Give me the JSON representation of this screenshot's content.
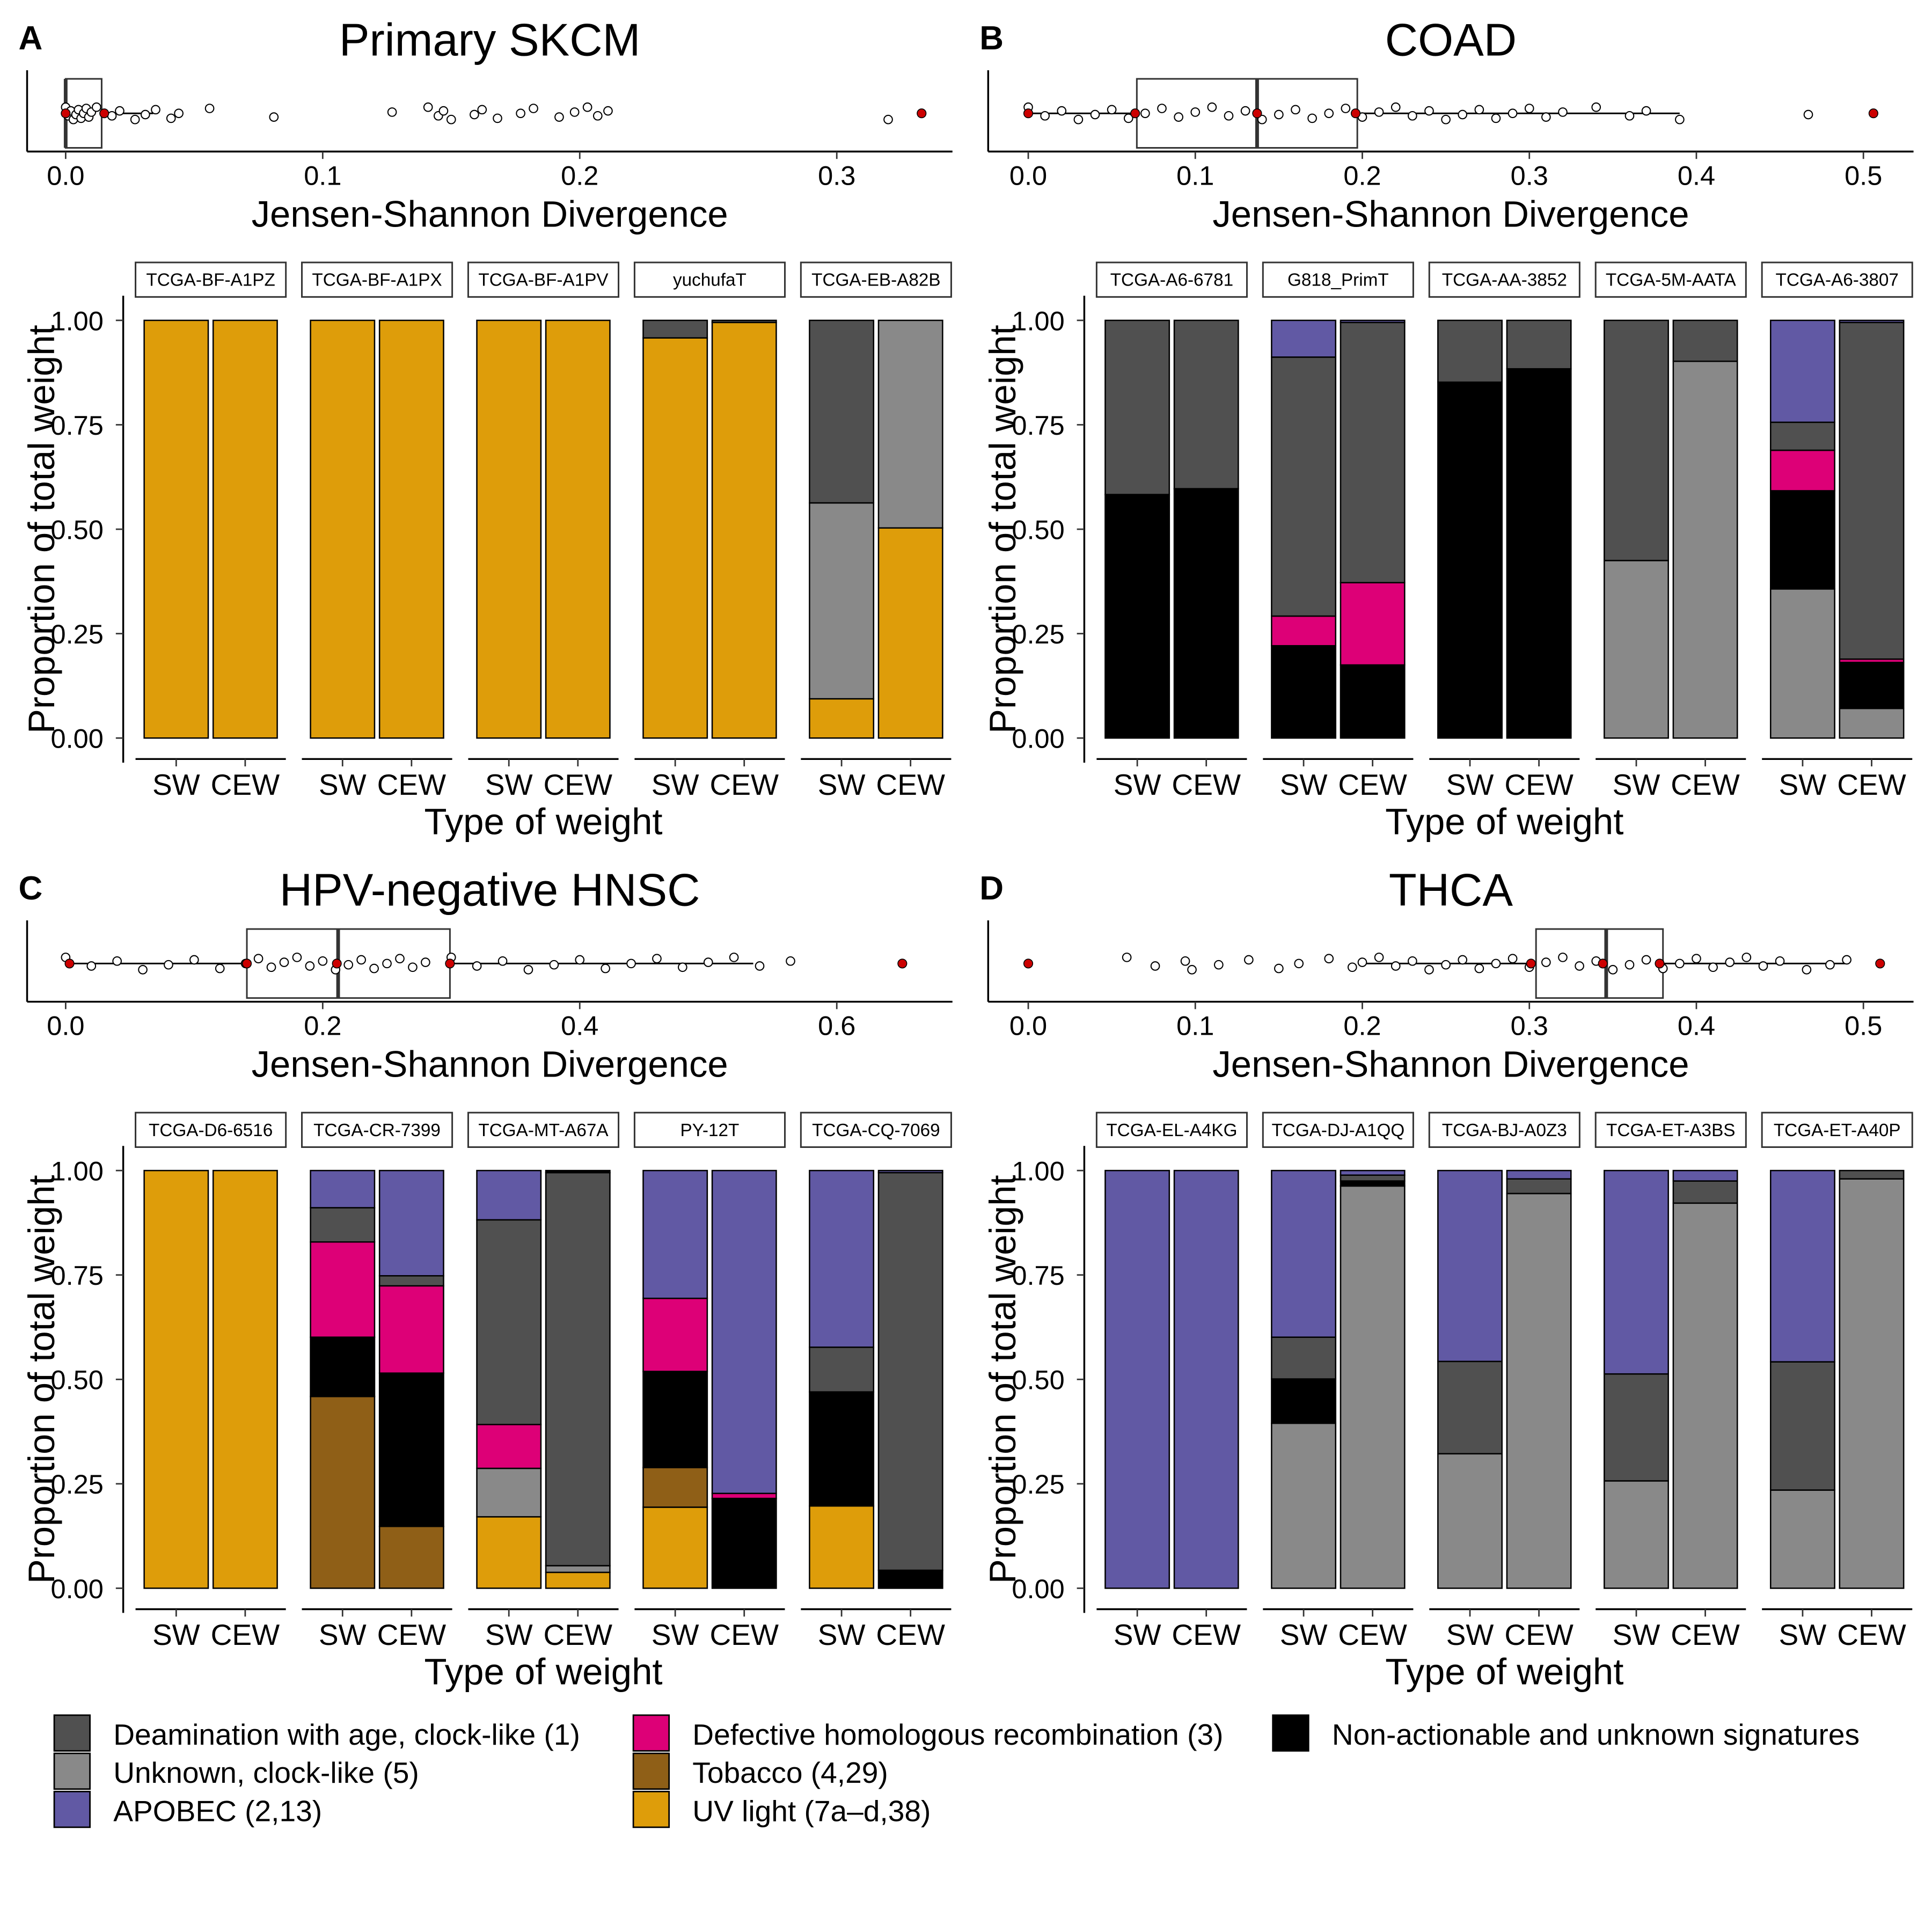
{
  "chart_data": [
    {
      "type": "bar",
      "panel_letter": "A",
      "title": "Primary SKCM",
      "strip": {
        "type": "boxplot",
        "xlabel": "Jensen-Shannon Divergence",
        "xlim": [
          -0.015,
          0.345
        ],
        "ticks": [
          0,
          0.1,
          0.2,
          0.3
        ],
        "tick_labels": [
          "0.0",
          "0.1",
          "0.2",
          "0.3"
        ],
        "box": {
          "q1": 0.0,
          "median": 0.0,
          "q3": 0.014,
          "whisker_low": 0.0,
          "whisker_high": 0.034
        },
        "points": [
          0.0,
          0.001,
          0.002,
          0.003,
          0.004,
          0.005,
          0.006,
          0.007,
          0.008,
          0.009,
          0.01,
          0.012,
          0.018,
          0.021,
          0.027,
          0.031,
          0.035,
          0.041,
          0.044,
          0.056,
          0.081,
          0.127,
          0.141,
          0.145,
          0.147,
          0.15,
          0.159,
          0.162,
          0.168,
          0.177,
          0.182,
          0.192,
          0.198,
          0.203,
          0.207,
          0.211,
          0.32
        ],
        "highlighted": [
          0.0,
          0.015,
          0.333
        ]
      },
      "ylabel": "Proportion of total weight",
      "xlabel": "Type of weight",
      "ylim": [
        0,
        1
      ],
      "y_ticks": [
        "0.00",
        "0.25",
        "0.50",
        "0.75",
        "1.00"
      ],
      "categories": [
        "SW",
        "CEW"
      ],
      "samples": [
        {
          "name": "TCGA-BF-A1PZ",
          "SW": [
            [
              "uv",
              1.0
            ]
          ],
          "CEW": [
            [
              "uv",
              1.0
            ]
          ]
        },
        {
          "name": "TCGA-BF-A1PX",
          "SW": [
            [
              "uv",
              1.0
            ]
          ],
          "CEW": [
            [
              "uv",
              1.0
            ]
          ]
        },
        {
          "name": "TCGA-BF-A1PV",
          "SW": [
            [
              "uv",
              1.0
            ]
          ],
          "CEW": [
            [
              "uv",
              1.0
            ]
          ]
        },
        {
          "name": "yuchufaT",
          "SW": [
            [
              "uv",
              0.958
            ],
            [
              "deam",
              0.042
            ]
          ],
          "CEW": [
            [
              "uv",
              0.995
            ],
            [
              "deam",
              0.005
            ]
          ]
        },
        {
          "name": "TCGA-EB-A82B",
          "SW": [
            [
              "uv",
              0.094
            ],
            [
              "unk5",
              0.469
            ],
            [
              "deam",
              0.437
            ]
          ],
          "CEW": [
            [
              "uv",
              0.503
            ],
            [
              "unk5",
              0.497
            ]
          ]
        }
      ]
    },
    {
      "type": "bar",
      "panel_letter": "B",
      "title": "COAD",
      "strip": {
        "type": "boxplot",
        "xlabel": "Jensen-Shannon Divergence",
        "xlim": [
          -0.024,
          0.53
        ],
        "ticks": [
          0,
          0.1,
          0.2,
          0.3,
          0.4,
          0.5
        ],
        "tick_labels": [
          "0.0",
          "0.1",
          "0.2",
          "0.3",
          "0.4",
          "0.5"
        ],
        "box": {
          "q1": 0.065,
          "median": 0.137,
          "q3": 0.197,
          "whisker_low": 0.0,
          "whisker_high": 0.39
        },
        "points": [
          0.0,
          0.01,
          0.02,
          0.03,
          0.04,
          0.05,
          0.06,
          0.07,
          0.08,
          0.09,
          0.1,
          0.11,
          0.12,
          0.13,
          0.14,
          0.15,
          0.16,
          0.17,
          0.18,
          0.19,
          0.2,
          0.21,
          0.22,
          0.23,
          0.24,
          0.25,
          0.26,
          0.27,
          0.28,
          0.29,
          0.3,
          0.31,
          0.32,
          0.34,
          0.36,
          0.37,
          0.39,
          0.467
        ],
        "highlighted": [
          0.0,
          0.064,
          0.137,
          0.196,
          0.506
        ]
      },
      "ylabel": "Proportion of total weight",
      "xlabel": "Type of weight",
      "ylim": [
        0,
        1
      ],
      "y_ticks": [
        "0.00",
        "0.25",
        "0.50",
        "0.75",
        "1.00"
      ],
      "categories": [
        "SW",
        "CEW"
      ],
      "samples": [
        {
          "name": "TCGA-A6-6781",
          "SW": [
            [
              "nonact",
              0.583
            ],
            [
              "deam",
              0.417
            ]
          ],
          "CEW": [
            [
              "nonact",
              0.597
            ],
            [
              "deam",
              0.403
            ]
          ]
        },
        {
          "name": "G818_PrimT",
          "SW": [
            [
              "nonact",
              0.221
            ],
            [
              "dhr",
              0.071
            ],
            [
              "deam",
              0.62
            ],
            [
              "apobec",
              0.088
            ]
          ],
          "CEW": [
            [
              "nonact",
              0.175
            ],
            [
              "dhr",
              0.197
            ],
            [
              "deam",
              0.623
            ],
            [
              "apobec",
              0.005
            ]
          ]
        },
        {
          "name": "TCGA-AA-3852",
          "SW": [
            [
              "nonact",
              0.852
            ],
            [
              "deam",
              0.148
            ]
          ],
          "CEW": [
            [
              "nonact",
              0.884
            ],
            [
              "deam",
              0.116
            ]
          ]
        },
        {
          "name": "TCGA-5M-AATA",
          "SW": [
            [
              "unk5",
              0.425
            ],
            [
              "deam",
              0.575
            ]
          ],
          "CEW": [
            [
              "unk5",
              0.902
            ],
            [
              "deam",
              0.098
            ]
          ]
        },
        {
          "name": "TCGA-A6-3807",
          "SW": [
            [
              "unk5",
              0.357
            ],
            [
              "nonact",
              0.235
            ],
            [
              "dhr",
              0.097
            ],
            [
              "deam",
              0.067
            ],
            [
              "apobec",
              0.244
            ]
          ],
          "CEW": [
            [
              "unk5",
              0.071
            ],
            [
              "nonact",
              0.11
            ],
            [
              "dhr",
              0.008
            ],
            [
              "deam",
              0.806
            ],
            [
              "apobec",
              0.005
            ]
          ]
        }
      ]
    },
    {
      "type": "bar",
      "panel_letter": "C",
      "title": "HPV-negative HNSC",
      "strip": {
        "type": "boxplot",
        "xlabel": "Jensen-Shannon Divergence",
        "xlim": [
          -0.03,
          0.69
        ],
        "ticks": [
          0,
          0.2,
          0.4,
          0.6
        ],
        "tick_labels": [
          "0.0",
          "0.2",
          "0.4",
          "0.6"
        ],
        "box": {
          "q1": 0.141,
          "median": 0.212,
          "q3": 0.299,
          "whisker_low": 0.0,
          "whisker_high": 0.535
        },
        "points": [
          0.0,
          0.02,
          0.04,
          0.06,
          0.08,
          0.1,
          0.12,
          0.14,
          0.15,
          0.16,
          0.17,
          0.18,
          0.19,
          0.2,
          0.21,
          0.22,
          0.23,
          0.24,
          0.25,
          0.26,
          0.27,
          0.28,
          0.3,
          0.32,
          0.34,
          0.36,
          0.38,
          0.4,
          0.42,
          0.44,
          0.46,
          0.48,
          0.5,
          0.52,
          0.54,
          0.564
        ],
        "highlighted": [
          0.003,
          0.141,
          0.211,
          0.299,
          0.651
        ]
      },
      "ylabel": "Proportion of total weight",
      "xlabel": "Type of weight",
      "ylim": [
        0,
        1
      ],
      "y_ticks": [
        "0.00",
        "0.25",
        "0.50",
        "0.75",
        "1.00"
      ],
      "categories": [
        "SW",
        "CEW"
      ],
      "samples": [
        {
          "name": "TCGA-D6-6516",
          "SW": [
            [
              "uv",
              1.0
            ]
          ],
          "CEW": [
            [
              "uv",
              1.0
            ]
          ]
        },
        {
          "name": "TCGA-CR-7399",
          "SW": [
            [
              "tob",
              0.459
            ],
            [
              "nonact",
              0.142
            ],
            [
              "dhr",
              0.228
            ],
            [
              "deam",
              0.082
            ],
            [
              "apobec",
              0.089
            ]
          ],
          "CEW": [
            [
              "tob",
              0.148
            ],
            [
              "nonact",
              0.367
            ],
            [
              "dhr",
              0.209
            ],
            [
              "deam",
              0.024
            ],
            [
              "apobec",
              0.252
            ]
          ]
        },
        {
          "name": "TCGA-MT-A67A",
          "SW": [
            [
              "uv",
              0.171
            ],
            [
              "unk5",
              0.116
            ],
            [
              "dhr",
              0.105
            ],
            [
              "deam",
              0.49
            ],
            [
              "apobec",
              0.118
            ]
          ],
          "CEW": [
            [
              "uv",
              0.038
            ],
            [
              "unk5",
              0.016
            ],
            [
              "deam",
              0.941
            ],
            [
              "nonact",
              0.005
            ]
          ]
        },
        {
          "name": "PY-12T",
          "SW": [
            [
              "uv",
              0.194
            ],
            [
              "tob",
              0.095
            ],
            [
              "nonact",
              0.23
            ],
            [
              "dhr",
              0.175
            ],
            [
              "apobec",
              0.306
            ]
          ],
          "CEW": [
            [
              "nonact",
              0.215
            ],
            [
              "dhr",
              0.012
            ],
            [
              "apobec",
              0.773
            ]
          ]
        },
        {
          "name": "TCGA-CQ-7069",
          "SW": [
            [
              "uv",
              0.197
            ],
            [
              "nonact",
              0.273
            ],
            [
              "deam",
              0.107
            ],
            [
              "apobec",
              0.423
            ]
          ],
          "CEW": [
            [
              "nonact",
              0.043
            ],
            [
              "deam",
              0.952
            ],
            [
              "apobec",
              0.005
            ]
          ]
        }
      ]
    },
    {
      "type": "bar",
      "panel_letter": "D",
      "title": "THCA",
      "strip": {
        "type": "boxplot",
        "xlabel": "Jensen-Shannon Divergence",
        "xlim": [
          -0.024,
          0.53
        ],
        "ticks": [
          0,
          0.1,
          0.2,
          0.3,
          0.4,
          0.5
        ],
        "tick_labels": [
          "0.0",
          "0.1",
          "0.2",
          "0.3",
          "0.4",
          "0.5"
        ],
        "box": {
          "q1": 0.304,
          "median": 0.346,
          "q3": 0.38,
          "whisker_low": 0.2,
          "whisker_high": 0.49
        },
        "points": [
          0.059,
          0.076,
          0.094,
          0.098,
          0.114,
          0.132,
          0.15,
          0.162,
          0.18,
          0.194,
          0.2,
          0.21,
          0.22,
          0.23,
          0.24,
          0.25,
          0.26,
          0.27,
          0.28,
          0.29,
          0.3,
          0.31,
          0.32,
          0.33,
          0.34,
          0.35,
          0.36,
          0.37,
          0.38,
          0.39,
          0.4,
          0.41,
          0.42,
          0.43,
          0.44,
          0.45,
          0.466,
          0.48,
          0.49
        ],
        "highlighted": [
          0.0,
          0.301,
          0.344,
          0.378,
          0.51
        ]
      },
      "ylabel": "Proportion of total weight",
      "xlabel": "Type of weight",
      "ylim": [
        0,
        1
      ],
      "y_ticks": [
        "0.00",
        "0.25",
        "0.50",
        "0.75",
        "1.00"
      ],
      "categories": [
        "SW",
        "CEW"
      ],
      "samples": [
        {
          "name": "TCGA-EL-A4KG",
          "SW": [
            [
              "apobec",
              1.0
            ]
          ],
          "CEW": [
            [
              "apobec",
              1.0
            ]
          ]
        },
        {
          "name": "TCGA-DJ-A1QQ",
          "SW": [
            [
              "unk5",
              0.395
            ],
            [
              "nonact",
              0.106
            ],
            [
              "deam",
              0.1
            ],
            [
              "apobec",
              0.399
            ]
          ],
          "CEW": [
            [
              "unk5",
              0.963
            ],
            [
              "nonact",
              0.012
            ],
            [
              "deam",
              0.014
            ],
            [
              "apobec",
              0.011
            ]
          ]
        },
        {
          "name": "TCGA-BJ-A0Z3",
          "SW": [
            [
              "unk5",
              0.322
            ],
            [
              "deam",
              0.221
            ],
            [
              "apobec",
              0.457
            ]
          ],
          "CEW": [
            [
              "unk5",
              0.945
            ],
            [
              "deam",
              0.035
            ],
            [
              "apobec",
              0.02
            ]
          ]
        },
        {
          "name": "TCGA-ET-A3BS",
          "SW": [
            [
              "unk5",
              0.257
            ],
            [
              "deam",
              0.256
            ],
            [
              "apobec",
              0.487
            ]
          ],
          "CEW": [
            [
              "unk5",
              0.922
            ],
            [
              "deam",
              0.053
            ],
            [
              "apobec",
              0.025
            ]
          ]
        },
        {
          "name": "TCGA-ET-A40P",
          "SW": [
            [
              "unk5",
              0.235
            ],
            [
              "deam",
              0.307
            ],
            [
              "apobec",
              0.458
            ]
          ],
          "CEW": [
            [
              "unk5",
              0.98
            ],
            [
              "deam",
              0.02
            ]
          ]
        }
      ]
    }
  ],
  "legend": [
    {
      "key": "deam",
      "label": "Deamination with age, clock-like (1)",
      "color": "#505050"
    },
    {
      "key": "unk5",
      "label": "Unknown, clock-like (5)",
      "color": "#898989"
    },
    {
      "key": "apobec",
      "label": "APOBEC (2,13)",
      "color": "#6159A4"
    },
    {
      "key": "dhr",
      "label": "Defective homologous recombination (3)",
      "color": "#DD0077"
    },
    {
      "key": "tob",
      "label": "Tobacco (4,29)",
      "color": "#8F5F17"
    },
    {
      "key": "uv",
      "label": "UV light (7a–d,38)",
      "color": "#DE9D0A"
    },
    {
      "key": "nonact",
      "label": "Non-actionable and unknown signatures",
      "color": "#000000"
    }
  ],
  "colors": {
    "highlight_point": "#CC0000"
  }
}
